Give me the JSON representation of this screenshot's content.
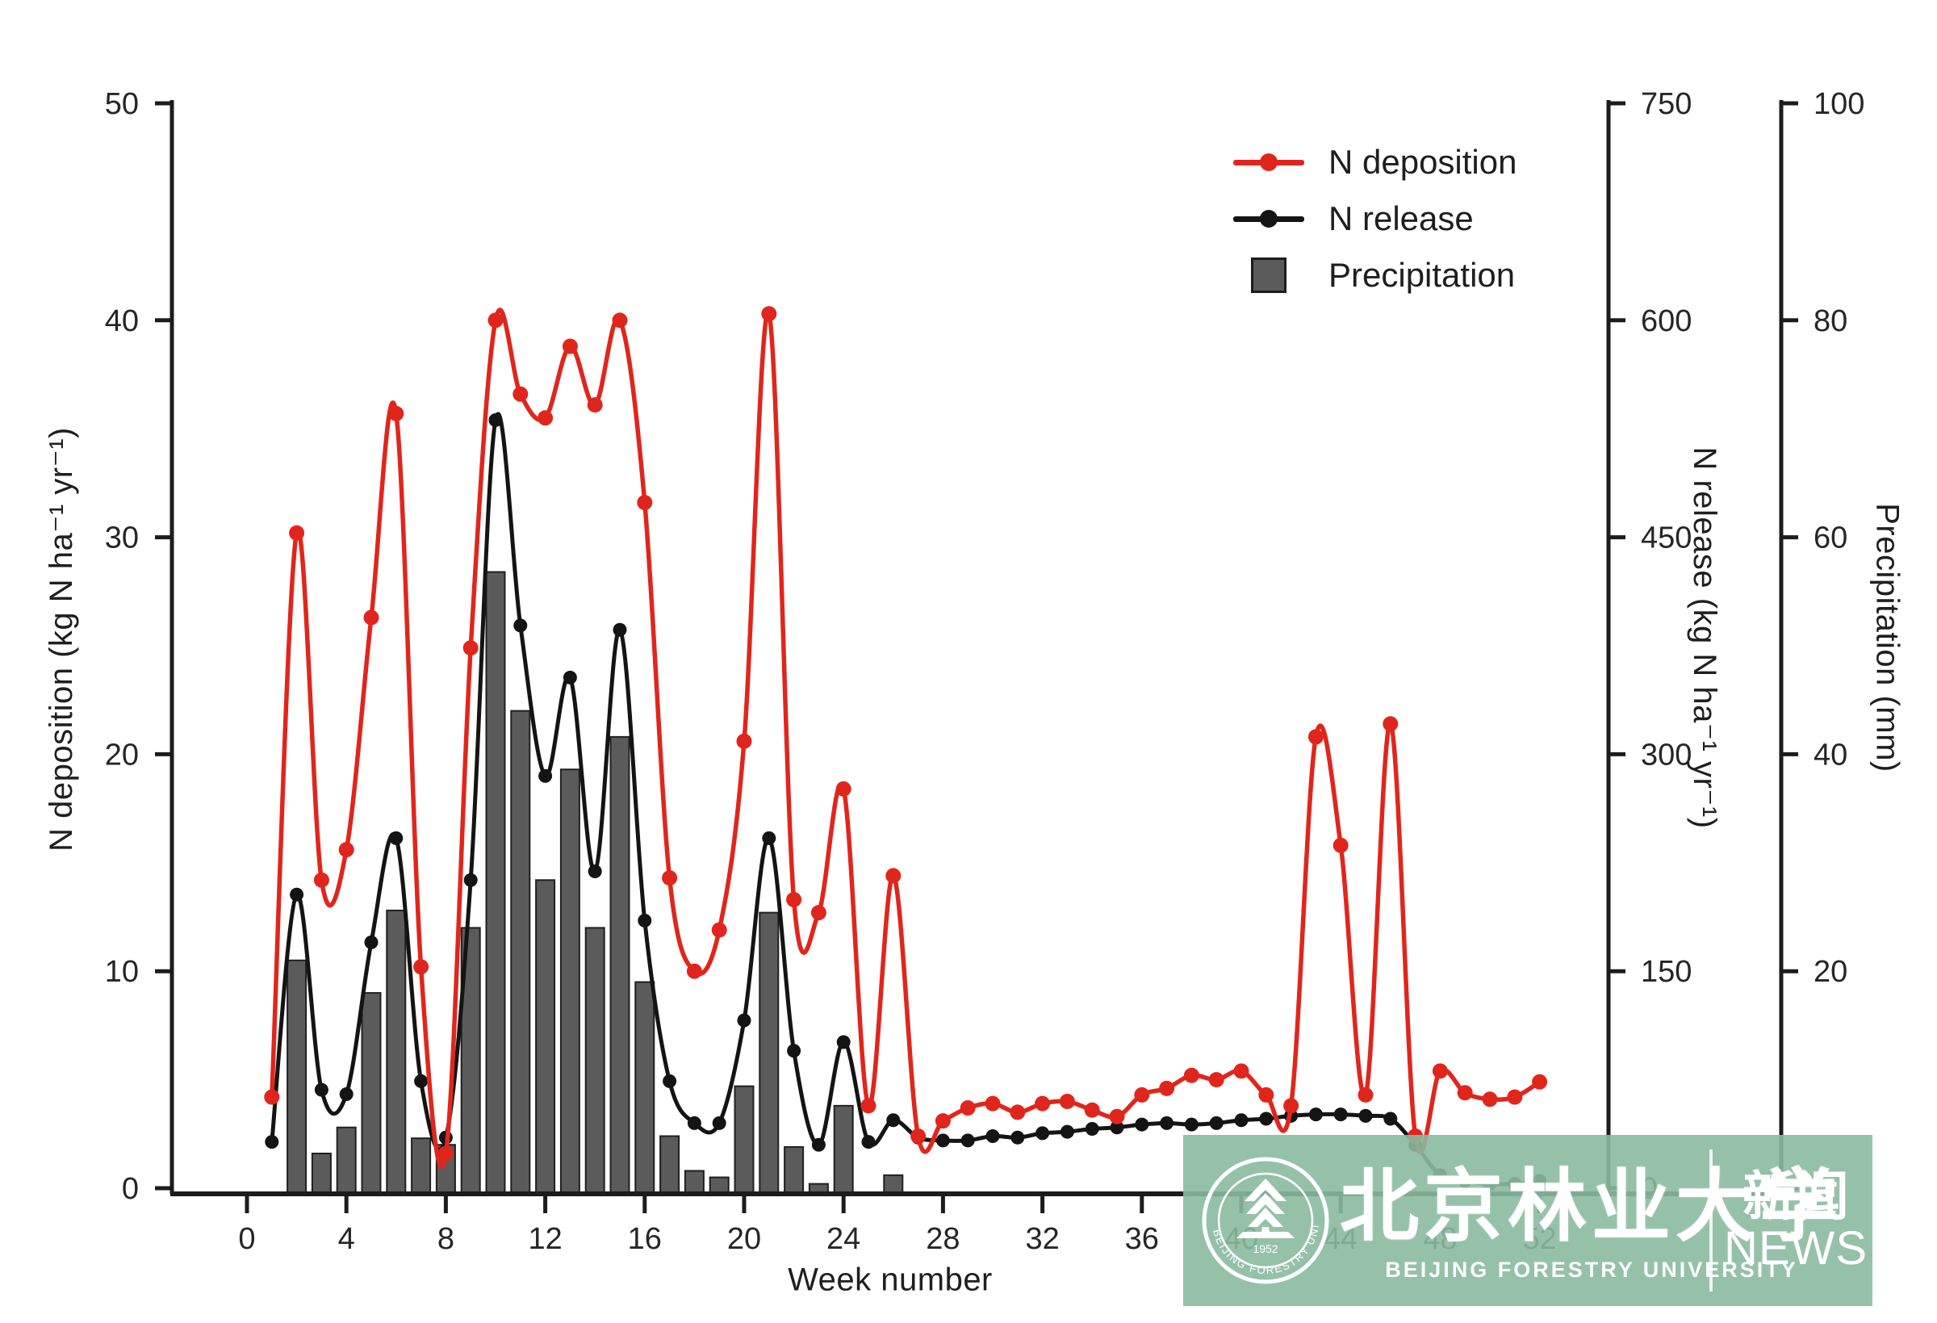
{
  "legend": {
    "items": [
      {
        "label": "N deposition",
        "type": "line",
        "color": "#e0261c"
      },
      {
        "label": "N release",
        "type": "line",
        "color": "#141414"
      },
      {
        "label": "Precipitation",
        "type": "swatch",
        "color": "#5b5b5b"
      }
    ]
  },
  "axes": {
    "left": {
      "label": "N deposition (kg N ha⁻¹ yr⁻¹)",
      "ticks": [
        0,
        10,
        20,
        30,
        40,
        50
      ],
      "range": [
        0,
        50
      ]
    },
    "right_release": {
      "label": "N release (kg N ha⁻¹ yr⁻¹)",
      "ticks": [
        0,
        150,
        300,
        450,
        600,
        750
      ],
      "range": [
        0,
        750
      ]
    },
    "right_precip": {
      "label": "Precipitation (mm)",
      "ticks": [
        0,
        20,
        40,
        60,
        80,
        100
      ],
      "range": [
        0,
        100
      ]
    },
    "x": {
      "label": "Week number",
      "ticks": [
        0,
        4,
        8,
        12,
        16,
        20,
        24,
        28,
        32,
        36,
        40,
        44,
        48,
        52
      ],
      "range": [
        0,
        53
      ]
    }
  },
  "watermark": {
    "university_zh": "北京林业大学",
    "university_en": "BEIJING FORESTRY UNIVERSITY",
    "news_zh": "新闻",
    "news_en": "NEWS",
    "seal_year": "1952",
    "seal_ring_en": "BEIJING FORESTRY UNIVERSITY",
    "band_color": "#8bbaa0"
  },
  "chart_data": {
    "type": "line+bar",
    "title": "",
    "xlabel": "Week number",
    "x_weeks": [
      1,
      2,
      3,
      4,
      5,
      6,
      7,
      8,
      9,
      10,
      11,
      12,
      13,
      14,
      15,
      16,
      17,
      18,
      19,
      20,
      21,
      22,
      23,
      24,
      25,
      26,
      27,
      28,
      29,
      30,
      31,
      32,
      33,
      34,
      35,
      36,
      37,
      38,
      39,
      40,
      41,
      42,
      43,
      44,
      45,
      46,
      47,
      48,
      49,
      50,
      51,
      52
    ],
    "series": [
      {
        "name": "N deposition",
        "type": "line",
        "axis": "left",
        "unit": "kg N ha⁻¹ yr⁻¹",
        "color": "#e0261c",
        "values": [
          4.2,
          30.2,
          14.2,
          15.6,
          26.3,
          35.7,
          10.2,
          1.6,
          24.9,
          40.0,
          36.6,
          35.5,
          38.8,
          36.1,
          40.0,
          31.6,
          14.3,
          10.0,
          11.9,
          20.6,
          40.3,
          13.3,
          12.7,
          18.4,
          3.8,
          14.4,
          2.4,
          3.1,
          3.7,
          3.9,
          3.5,
          3.9,
          4.0,
          3.6,
          3.3,
          4.3,
          4.6,
          5.2,
          5.0,
          5.4,
          4.3,
          3.8,
          20.8,
          15.8,
          4.3,
          21.4,
          2.4,
          5.4,
          4.4,
          4.1,
          4.2,
          4.9
        ]
      },
      {
        "name": "N release",
        "type": "line",
        "axis": "right_release",
        "unit": "kg N ha⁻¹ yr⁻¹",
        "color": "#141414",
        "values": [
          32,
          203,
          68,
          65,
          170,
          242,
          74,
          35,
          213,
          531,
          389,
          285,
          353,
          219,
          386,
          185,
          74,
          45,
          45,
          116,
          242,
          95,
          30,
          101,
          32,
          47,
          35,
          33,
          33,
          36,
          35,
          38,
          39,
          41,
          42,
          44,
          45,
          44,
          45,
          47,
          48,
          50,
          51,
          51,
          50,
          48,
          30,
          9,
          5,
          3,
          3,
          5
        ]
      },
      {
        "name": "Precipitation",
        "type": "bar",
        "axis": "right_precip",
        "unit": "mm",
        "color": "#5b5b5b",
        "values": [
          0,
          21,
          3.2,
          5.6,
          18,
          25.6,
          4.6,
          4.0,
          24,
          56.8,
          44,
          28.4,
          38.6,
          24,
          41.6,
          19,
          4.8,
          1.6,
          1.0,
          9.4,
          25.4,
          3.8,
          0.4,
          7.6,
          0,
          1.2,
          0,
          0,
          0,
          0,
          0,
          0,
          0,
          0,
          0,
          0,
          0,
          0,
          0,
          0,
          0,
          0,
          0,
          0,
          0,
          0,
          0,
          0,
          0,
          0,
          0,
          0
        ]
      }
    ],
    "legend_position": "top-right",
    "grid": false
  }
}
